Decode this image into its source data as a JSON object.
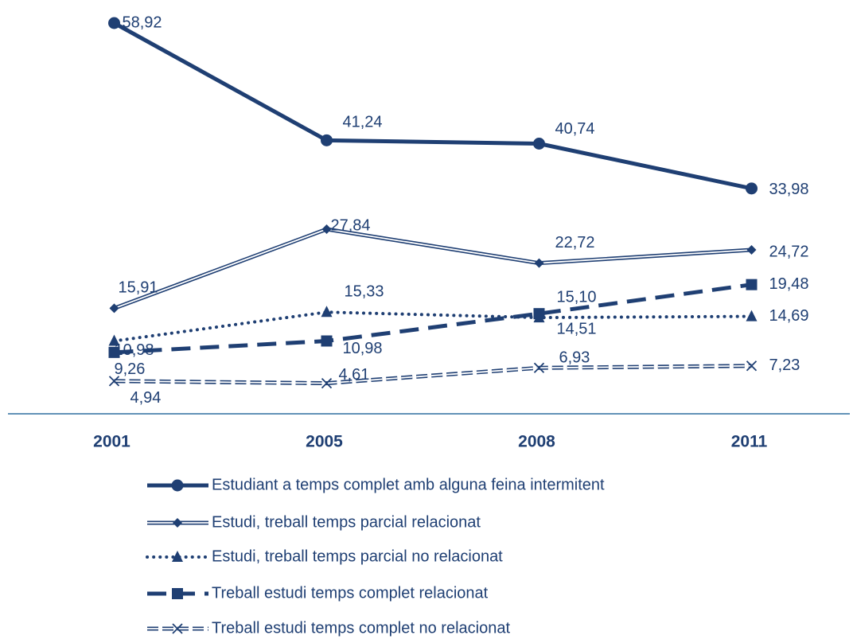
{
  "chart_data": {
    "type": "line",
    "categories": [
      "2001",
      "2005",
      "2008",
      "2011"
    ],
    "ylim": [
      0,
      60
    ],
    "legend": "bottom",
    "series": [
      {
        "name": "Estudiant a temps complet amb alguna feina intermitent",
        "color": "#1f3f73",
        "line": "solid",
        "marker": "circle",
        "values": [
          58.92,
          41.24,
          40.74,
          33.98
        ],
        "value_labels": [
          "58,92",
          "41,24",
          "40,74",
          "33,98"
        ]
      },
      {
        "name": "Estudi, treball temps parcial relacionat",
        "color": "#1f3f73",
        "line": "double",
        "marker": "diamond",
        "values": [
          15.91,
          27.84,
          22.72,
          24.72
        ],
        "value_labels": [
          "15,91",
          "27,84",
          "22,72",
          "24,72"
        ]
      },
      {
        "name": "Estudi, treball  temps parcial no relacionat",
        "color": "#1f3f73",
        "line": "dotted",
        "marker": "triangle",
        "values": [
          10.98,
          15.33,
          14.51,
          14.69
        ],
        "value_labels": [
          "10,98",
          "15,33",
          "14,51",
          "14,69"
        ]
      },
      {
        "name": "Treball estudi temps complet relacionat",
        "color": "#1f3f73",
        "line": "dashed",
        "marker": "square",
        "values": [
          9.26,
          10.98,
          15.1,
          19.48
        ],
        "value_labels": [
          "9,26",
          "10,98",
          "15,10",
          "19,48"
        ]
      },
      {
        "name": "Treball estudi temps complet no relacionat",
        "color": "#1f3f73",
        "line": "double-dashed",
        "marker": "x",
        "values": [
          4.94,
          4.61,
          6.93,
          7.23
        ],
        "value_labels": [
          "4,94",
          "4,61",
          "6,93",
          "7,23"
        ]
      }
    ]
  }
}
